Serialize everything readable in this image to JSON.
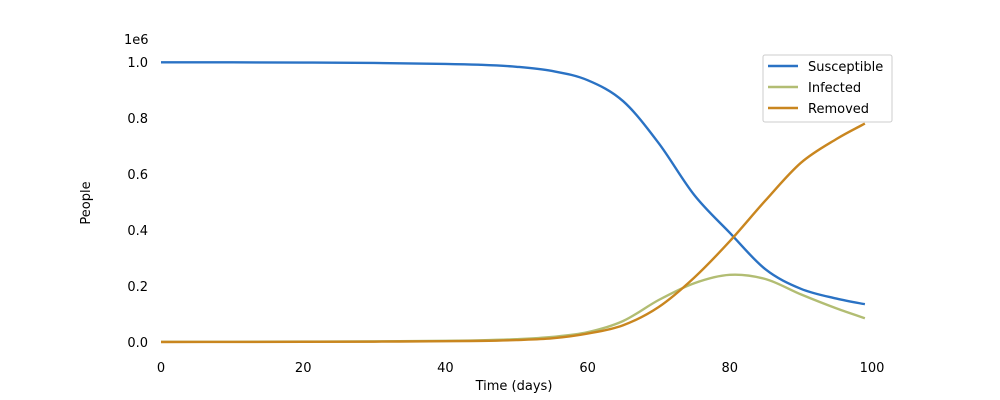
{
  "chart_data": {
    "type": "line",
    "xlabel": "Time (days)",
    "ylabel": "People",
    "y_offset_label": "1e6",
    "y_scale": 1000000,
    "xlim": [
      0,
      100
    ],
    "ylim": [
      0,
      1000000
    ],
    "x_ticks": [
      0,
      20,
      40,
      60,
      80,
      100
    ],
    "x_tick_labels": [
      "0",
      "20",
      "40",
      "60",
      "80",
      "100"
    ],
    "y_ticks": [
      0,
      200000,
      400000,
      600000,
      800000,
      1000000
    ],
    "y_tick_labels": [
      "0.0",
      "0.2",
      "0.4",
      "0.6",
      "0.8",
      "1.0"
    ],
    "grid": false,
    "legend_position": "top-right",
    "x": [
      0,
      10,
      20,
      30,
      40,
      45,
      50,
      55,
      60,
      65,
      70,
      75,
      80,
      85,
      90,
      95,
      99
    ],
    "series": [
      {
        "name": "Susceptible",
        "color": "#2a72c4",
        "values": [
          999000,
          998800,
          998000,
          996500,
          993000,
          990000,
          983000,
          968000,
          935000,
          860000,
          710000,
          525000,
          390000,
          260000,
          190000,
          155000,
          135000
        ]
      },
      {
        "name": "Infected",
        "color": "#b2bd73",
        "values": [
          500,
          800,
          1400,
          2200,
          4000,
          6000,
          10000,
          18000,
          35000,
          75000,
          150000,
          210000,
          240000,
          225000,
          170000,
          120000,
          85000
        ]
      },
      {
        "name": "Removed",
        "color": "#c9861f",
        "values": [
          0,
          300,
          600,
          1300,
          3000,
          4000,
          7000,
          13000,
          30000,
          60000,
          125000,
          230000,
          360000,
          505000,
          640000,
          725000,
          780000
        ]
      }
    ]
  }
}
